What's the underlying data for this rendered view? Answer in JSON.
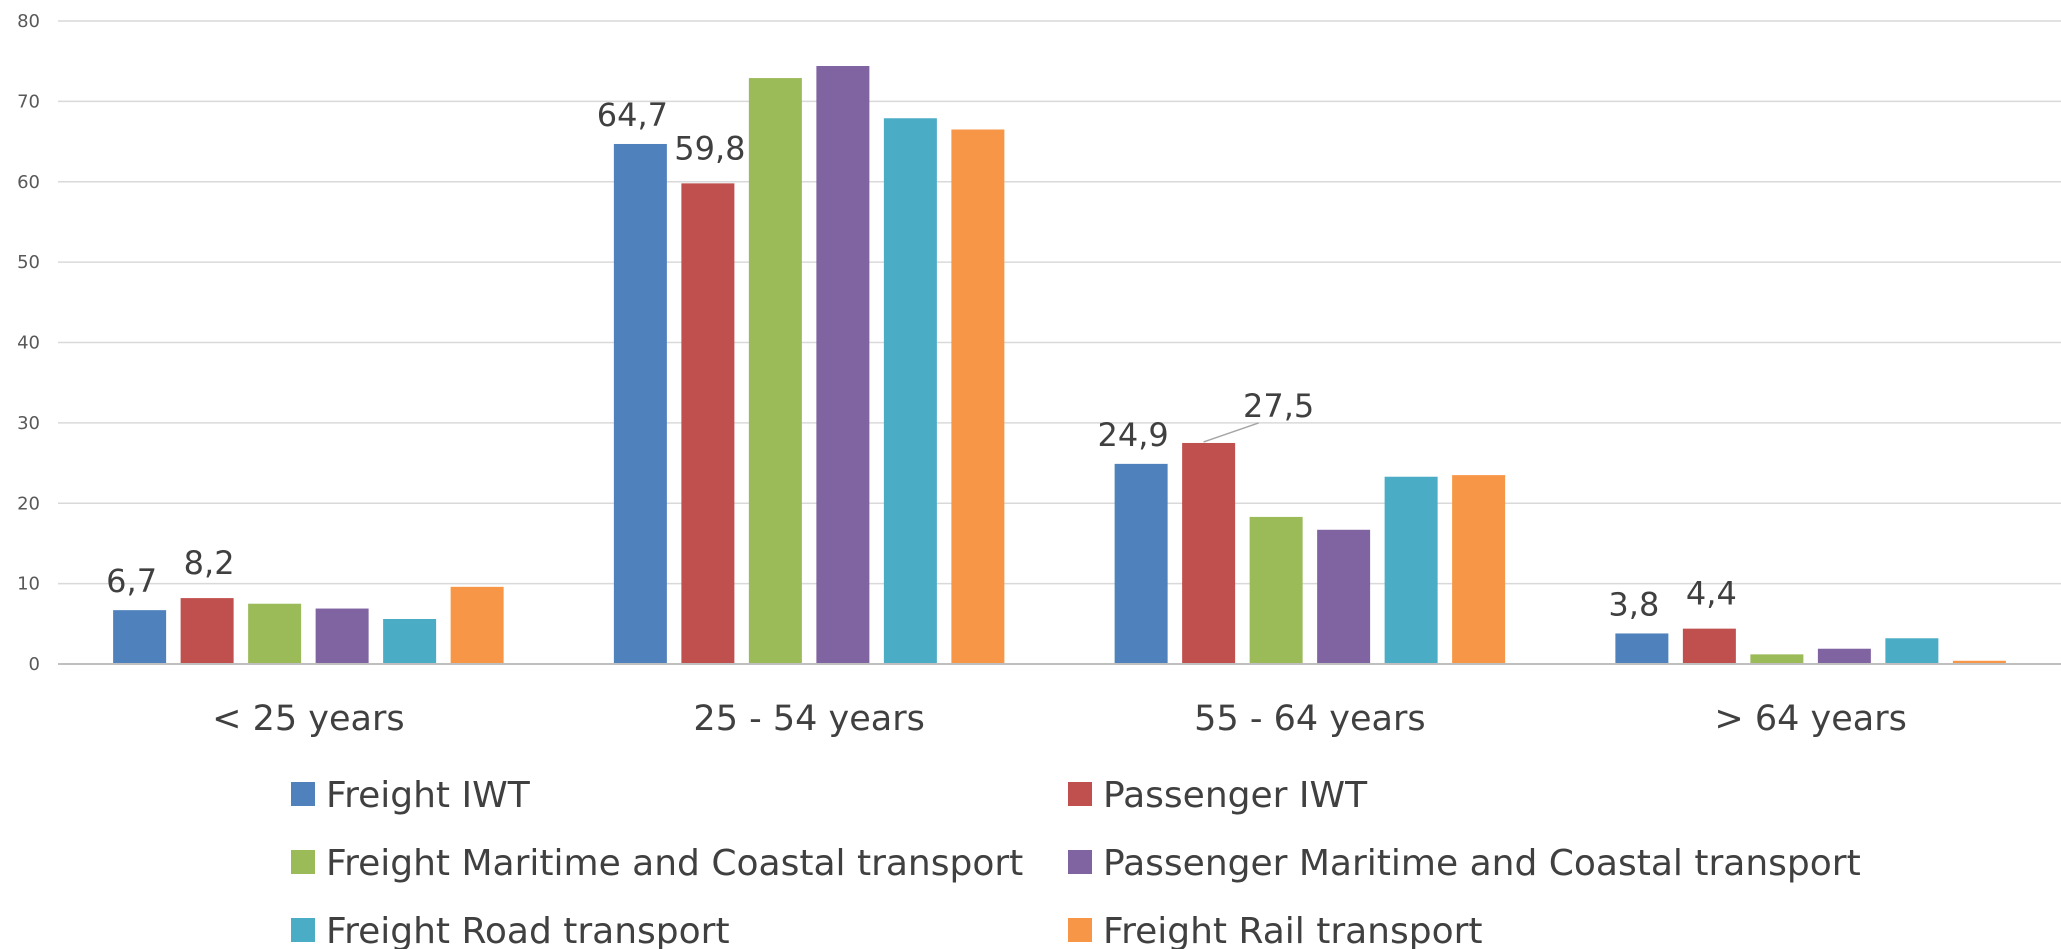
{
  "chart_data": {
    "type": "bar",
    "title": "",
    "xlabel": "",
    "ylabel": "",
    "ylim": [
      0,
      80
    ],
    "yticks": [
      0,
      10,
      20,
      30,
      40,
      50,
      60,
      70,
      80
    ],
    "grid": true,
    "legend_position": "bottom",
    "categories": [
      "< 25 years",
      "25 - 54 years",
      "55 - 64 years",
      "> 64 years"
    ],
    "series": [
      {
        "name": "Freight IWT",
        "color": "#4f81bd",
        "values": [
          6.7,
          64.7,
          24.9,
          3.8
        ]
      },
      {
        "name": "Passenger IWT",
        "color": "#c0504d",
        "values": [
          8.2,
          59.8,
          27.5,
          4.4
        ]
      },
      {
        "name": "Freight Maritime and Coastal transport",
        "color": "#9bbb59",
        "values": [
          7.5,
          72.9,
          18.3,
          1.2
        ]
      },
      {
        "name": "Passenger Maritime and Coastal transport",
        "color": "#8064a2",
        "values": [
          6.9,
          74.4,
          16.7,
          1.9
        ]
      },
      {
        "name": "Freight Road transport",
        "color": "#4bacc6",
        "values": [
          5.6,
          67.9,
          23.3,
          3.2
        ]
      },
      {
        "name": "Freight Rail transport",
        "color": "#f79646",
        "values": [
          9.6,
          66.5,
          23.5,
          0.4
        ]
      }
    ],
    "data_labels": [
      {
        "series": 0,
        "category": 0,
        "text": "6,7"
      },
      {
        "series": 1,
        "category": 0,
        "text": "8,2"
      },
      {
        "series": 0,
        "category": 1,
        "text": "64,7"
      },
      {
        "series": 1,
        "category": 1,
        "text": "59,8"
      },
      {
        "series": 0,
        "category": 2,
        "text": "24,9"
      },
      {
        "series": 1,
        "category": 2,
        "text": "27,5"
      },
      {
        "series": 0,
        "category": 3,
        "text": "3,8"
      },
      {
        "series": 1,
        "category": 3,
        "text": "4,4"
      }
    ]
  }
}
